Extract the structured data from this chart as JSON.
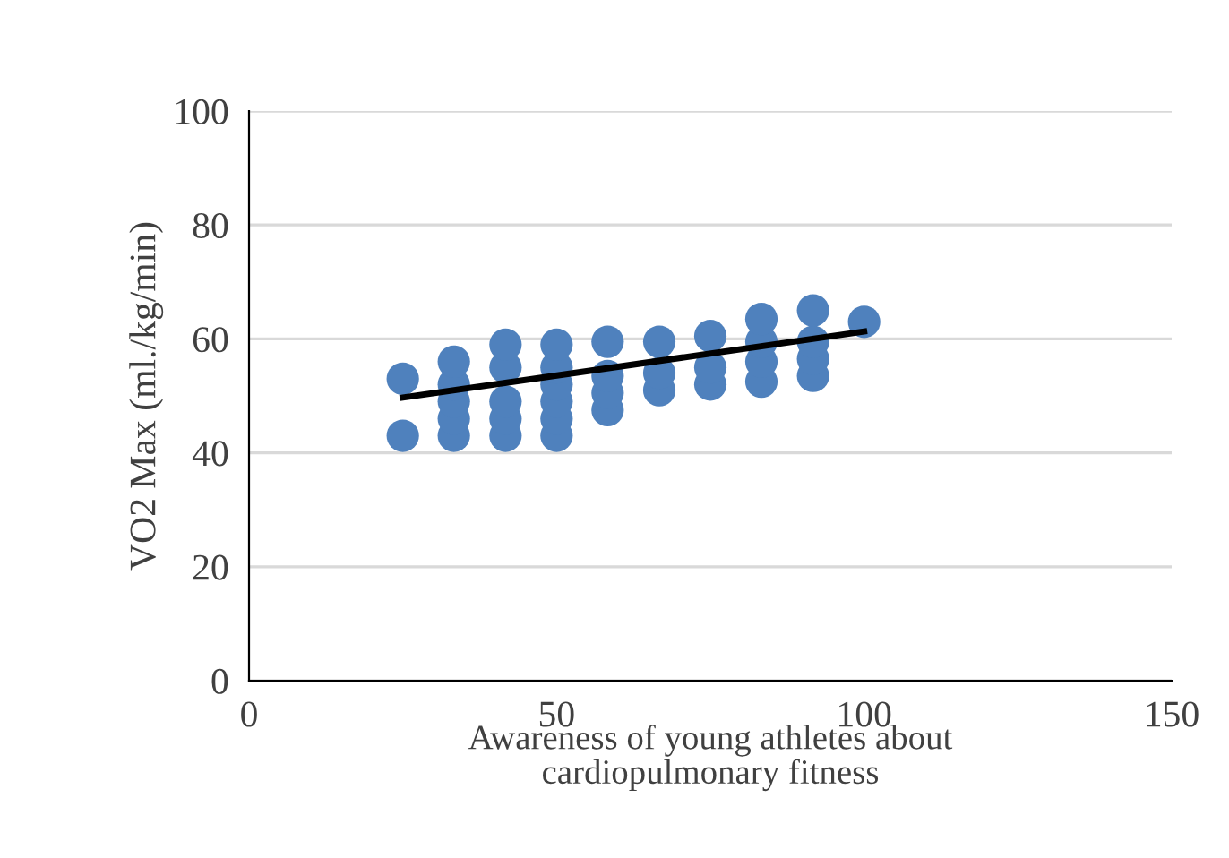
{
  "chart_data": {
    "type": "scatter",
    "xlabel": "Awareness of young athletes about\ncardiopulmonary fitness",
    "ylabel": "VO2 Max (ml./kg/min)",
    "xlim": [
      0,
      150
    ],
    "xticks": [
      0,
      50,
      100,
      150
    ],
    "ylim": [
      0,
      100
    ],
    "yticks": [
      0,
      20,
      40,
      60,
      80,
      100
    ],
    "grid": "y",
    "marker": "circle",
    "legend": false,
    "series": [
      {
        "color": "#4f81bd",
        "x": [
          25,
          25,
          33.3,
          33.3,
          33.3,
          33.3,
          33.3,
          41.7,
          41.7,
          41.7,
          41.7,
          41.7,
          50,
          50,
          50,
          50,
          50,
          50,
          58.3,
          58.3,
          58.3,
          58.3,
          66.7,
          66.7,
          66.7,
          75,
          75,
          75,
          83.3,
          83.3,
          83.3,
          83.3,
          91.7,
          91.7,
          91.7,
          91.7,
          100
        ],
        "values": [
          43,
          53,
          43,
          46,
          49,
          52,
          56,
          43,
          46,
          49,
          55,
          59,
          43,
          46,
          49,
          52,
          55,
          59,
          47.5,
          50.5,
          53.5,
          59.5,
          51,
          54,
          59.5,
          52,
          55,
          60.5,
          52.5,
          56,
          59.5,
          63.5,
          53.5,
          56.5,
          59.5,
          65,
          63
        ]
      },
      {
        "type": "line",
        "marker": "none",
        "color": "#000000",
        "x": [
          25,
          100
        ],
        "values": [
          49.7,
          61.3
        ]
      }
    ]
  }
}
